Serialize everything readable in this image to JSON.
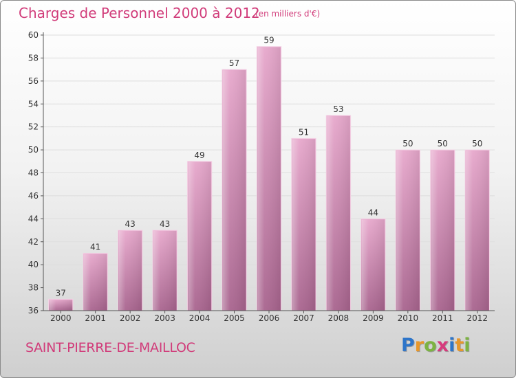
{
  "header": {
    "title": "Charges de Personnel 2000 à 2012",
    "subtitle": "(en milliers d'€)"
  },
  "footer": {
    "commune": "SAINT-PIERRE-DE-MAILLOC",
    "brand": {
      "letters": [
        "P",
        "r",
        "o",
        "x",
        "i",
        "t",
        "i"
      ],
      "colors": [
        "#2e75c9",
        "#e8972a",
        "#7cb342",
        "#d63a7c",
        "#2e75c9",
        "#e8972a",
        "#7cb342"
      ]
    }
  },
  "colors": {
    "bar_top": "#e7a8cc",
    "bar_bottom": "#a8648e",
    "bar_edge": "#f3d3e5",
    "axis": "#555555",
    "grid": "#dddddd",
    "accent": "#d13c7a"
  },
  "chart_data": {
    "type": "bar",
    "title": "Charges de Personnel 2000 à 2012",
    "subtitle": "(en milliers d'€)",
    "categories": [
      "2000",
      "2001",
      "2002",
      "2003",
      "2004",
      "2005",
      "2006",
      "2007",
      "2008",
      "2009",
      "2010",
      "2011",
      "2012"
    ],
    "values": [
      37,
      41,
      43,
      43,
      49,
      57,
      59,
      51,
      53,
      44,
      50,
      50,
      50
    ],
    "yticks": [
      36,
      38,
      40,
      42,
      44,
      46,
      48,
      50,
      52,
      54,
      56,
      58,
      60
    ],
    "ylim": [
      36,
      60
    ],
    "xlabel": "",
    "ylabel": "",
    "grid": true,
    "legend": "none"
  }
}
